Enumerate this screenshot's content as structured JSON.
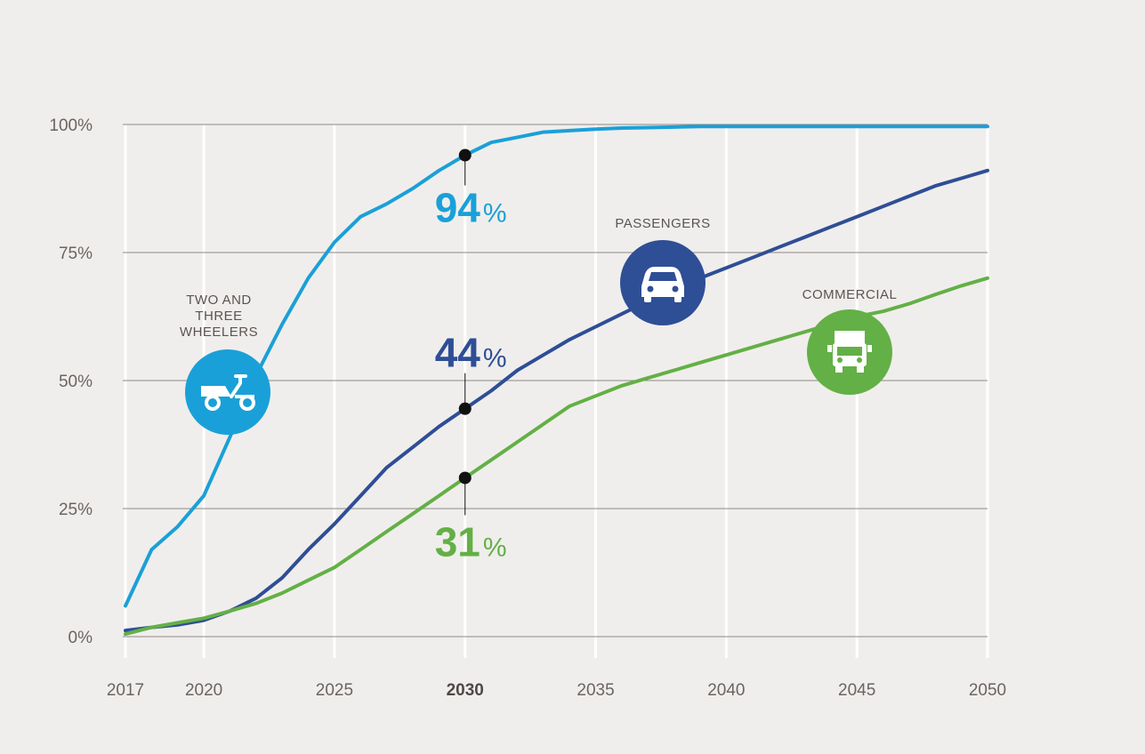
{
  "chart_data": {
    "type": "line",
    "x": [
      2017,
      2018,
      2019,
      2020,
      2021,
      2022,
      2023,
      2024,
      2025,
      2026,
      2027,
      2028,
      2029,
      2030,
      2031,
      2032,
      2033,
      2034,
      2035,
      2036,
      2037,
      2038,
      2039,
      2040,
      2041,
      2042,
      2043,
      2044,
      2045,
      2046,
      2047,
      2048,
      2049,
      2050
    ],
    "xticks": [
      "2017",
      "2020",
      "2025",
      "2030",
      "2035",
      "2040",
      "2045",
      "2050"
    ],
    "xtick_values": [
      2017,
      2020,
      2025,
      2030,
      2035,
      2040,
      2045,
      2050
    ],
    "highlight_tick": "2030",
    "yticks": [
      "0%",
      "25%",
      "50%",
      "75%",
      "100%"
    ],
    "ytick_values": [
      0,
      25,
      50,
      75,
      100
    ],
    "ylim": [
      0,
      100
    ],
    "xlim": [
      2017,
      2050
    ],
    "grid": true,
    "series": [
      {
        "name": "TWO AND THREE WHEELERS",
        "label_lines": [
          "TWO AND",
          "THREE",
          "WHEELERS"
        ],
        "color": "#1aa0d8",
        "icon": "scooter-icon",
        "values": [
          6,
          17,
          21.5,
          27.5,
          39,
          51,
          61,
          70,
          77,
          82,
          84.5,
          87.5,
          91,
          94,
          96.5,
          97.5,
          98.5,
          98.8,
          99.1,
          99.3,
          99.4,
          99.5,
          99.6,
          99.6,
          99.6,
          99.6,
          99.6,
          99.6,
          99.6,
          99.6,
          99.6,
          99.6,
          99.6,
          99.6
        ]
      },
      {
        "name": "PASSENGERS",
        "label_lines": [
          "PASSENGERS"
        ],
        "color": "#2e4e96",
        "icon": "car-icon",
        "values": [
          1.2,
          1.8,
          2.3,
          3.2,
          5,
          7.5,
          11.5,
          17,
          22,
          27.5,
          33,
          37,
          41,
          44.5,
          48,
          52,
          55,
          58,
          60.5,
          63,
          65.5,
          68.5,
          70,
          72,
          74,
          76,
          78,
          80,
          82,
          84,
          86,
          88,
          89.5,
          91
        ]
      },
      {
        "name": "COMMERCIAL",
        "label_lines": [
          "COMMERCIAL"
        ],
        "color": "#63b046",
        "icon": "truck-icon",
        "values": [
          0.5,
          1.8,
          2.7,
          3.6,
          5,
          6.5,
          8.5,
          11,
          13.5,
          17,
          20.5,
          24,
          27.5,
          31,
          34.5,
          38,
          41.5,
          45,
          47,
          49,
          50.5,
          52,
          53.5,
          55,
          56.5,
          58,
          59.5,
          61,
          62.5,
          63.5,
          65,
          66.8,
          68.5,
          70
        ]
      }
    ],
    "callouts": [
      {
        "series": 0,
        "x": 2030,
        "number": "94",
        "suffix": "%"
      },
      {
        "series": 1,
        "x": 2030,
        "number": "44",
        "suffix": "%"
      },
      {
        "series": 2,
        "x": 2030,
        "number": "31",
        "suffix": "%"
      }
    ]
  }
}
